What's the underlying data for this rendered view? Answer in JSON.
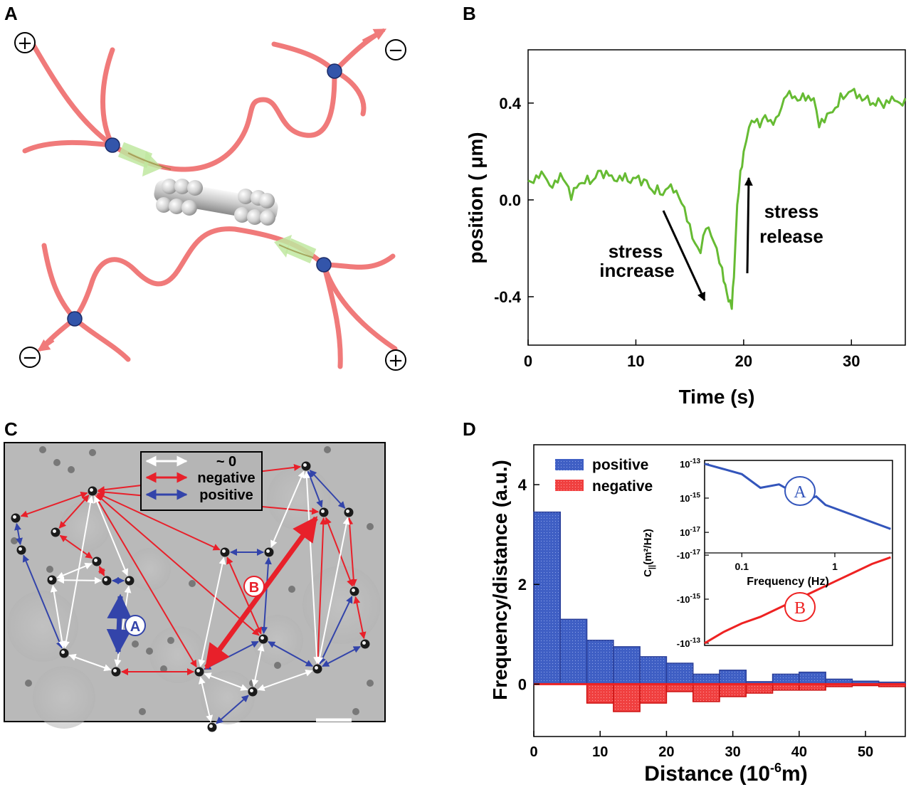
{
  "panels": {
    "A": {
      "letter": "A",
      "plus_sign": "+",
      "minus_sign": "−"
    },
    "B": {
      "letter": "B",
      "chart_data": {
        "type": "line",
        "xlabel": "Time (s)",
        "ylabel": "position ( μm)",
        "xlim": [
          0,
          35
        ],
        "ylim": [
          -0.6,
          0.62
        ],
        "x_ticks": [
          0,
          10,
          20,
          30
        ],
        "x_tick_labels": [
          "0",
          "10",
          "20",
          "30"
        ],
        "y_ticks": [
          -0.4,
          0.0,
          0.4
        ],
        "y_tick_labels": [
          "-0.4",
          "0.0",
          "0.4"
        ],
        "color": "#66bb33",
        "series": [
          {
            "x": [
              0,
              0.5,
              1,
              1.5,
              2,
              2.5,
              3,
              3.5,
              4,
              4.5,
              5,
              5.5,
              6,
              6.5,
              7,
              7.5,
              8,
              8.5,
              9,
              9.5,
              10,
              10.5,
              11,
              11.5,
              12,
              12.5,
              13,
              13.5,
              14,
              14.5,
              15,
              15.5,
              16,
              16.5,
              17,
              17.5,
              18,
              18.3,
              18.6,
              18.9,
              19.1,
              19.4,
              19.7,
              20,
              20.5,
              21,
              21.5,
              22,
              22.5,
              23,
              23.5,
              24,
              24.5,
              25,
              25.5,
              26,
              26.5,
              27,
              27.5,
              28,
              28.5,
              29,
              29.5,
              30,
              30.5,
              31,
              31.5,
              32,
              32.5,
              33,
              33.5,
              34,
              34.5,
              35
            ],
            "y": [
              0.08,
              0.07,
              0.09,
              0.1,
              0.06,
              0.08,
              0.11,
              0.07,
              0.0,
              0.05,
              0.07,
              0.1,
              0.08,
              0.12,
              0.09,
              0.1,
              0.08,
              0.1,
              0.11,
              0.07,
              0.09,
              0.06,
              0.08,
              0.04,
              0.06,
              0.02,
              0.05,
              0.03,
              0.01,
              -0.03,
              -0.1,
              -0.18,
              -0.22,
              -0.12,
              -0.15,
              -0.2,
              -0.28,
              -0.35,
              -0.42,
              -0.45,
              -0.32,
              -0.02,
              0.12,
              0.2,
              0.3,
              0.32,
              0.3,
              0.35,
              0.33,
              0.34,
              0.38,
              0.43,
              0.42,
              0.41,
              0.44,
              0.43,
              0.42,
              0.3,
              0.32,
              0.36,
              0.38,
              0.44,
              0.43,
              0.45,
              0.42,
              0.41,
              0.43,
              0.4,
              0.42,
              0.38,
              0.4,
              0.41,
              0.4,
              0.42
            ]
          }
        ],
        "annotations": [
          {
            "lines": [
              "stress",
              "increase"
            ]
          },
          {
            "lines": [
              "stress",
              "release"
            ]
          }
        ]
      }
    },
    "C": {
      "letter": "C",
      "legend": [
        {
          "label": "~ 0",
          "color": "#ffffff"
        },
        {
          "label": "negative",
          "color": "#e8202a"
        },
        {
          "label": "positive",
          "color": "#3344aa"
        }
      ],
      "markers": [
        {
          "text": "A",
          "color": "#3344aa"
        },
        {
          "text": "B",
          "color": "#e8202a"
        }
      ]
    },
    "D": {
      "letter": "D",
      "chart_data": {
        "type": "bar",
        "xlabel": "Distance (10",
        "xlabel_sup": "-6",
        "xlabel_tail": "m)",
        "ylabel": "Frequency/distance (a.u.)",
        "xlim": [
          0,
          56
        ],
        "ylim": [
          -1.05,
          4.8
        ],
        "x_ticks": [
          0,
          10,
          20,
          30,
          40,
          50
        ],
        "x_tick_labels": [
          "0",
          "10",
          "20",
          "30",
          "40",
          "50"
        ],
        "y_ticks": [
          0,
          2,
          4
        ],
        "y_tick_labels": [
          "0",
          "2",
          "4"
        ],
        "bin_width": 4,
        "bin_starts": [
          0,
          4,
          8,
          12,
          16,
          20,
          24,
          28,
          32,
          36,
          40,
          44,
          48,
          52
        ],
        "series": [
          {
            "name": "positive",
            "color": "#3355bb",
            "values": [
              3.45,
              1.3,
              0.88,
              0.75,
              0.55,
              0.42,
              0.2,
              0.28,
              0.05,
              0.2,
              0.24,
              0.1,
              0.06,
              0.04
            ]
          },
          {
            "name": "negative",
            "color": "#ee2222",
            "values": [
              0,
              0,
              -0.38,
              -0.55,
              -0.38,
              -0.15,
              -0.35,
              -0.25,
              -0.18,
              -0.12,
              -0.12,
              -0.05,
              -0.03,
              -0.05
            ]
          }
        ],
        "inset": {
          "ylabel": "C",
          "ylabel_sub": "||",
          "ylabel_tail": "(m²/Hz)",
          "xlabel": "Frequency (Hz)",
          "x_tick_labels": [
            "0.1",
            "1"
          ],
          "top_tick_labels": [
            "10-13",
            "10-15",
            "10-17"
          ],
          "bottom_tick_labels": [
            "-10-17",
            "-10-15",
            "-10-13"
          ],
          "marker_A": "A",
          "marker_B": "B",
          "positive_curve": {
            "log_f": [
              -1.4,
              -1.2,
              -1.0,
              -0.8,
              -0.6,
              -0.5,
              -0.4,
              -0.3,
              -0.2,
              -0.1,
              0,
              0.1,
              0.2,
              0.3,
              0.4,
              0.5,
              0.6
            ],
            "log_c": [
              -13.0,
              -13.3,
              -13.6,
              -14.4,
              -14.2,
              -14.5,
              -14.4,
              -15.1,
              -14.9,
              -15.4,
              -15.6,
              -15.8,
              -16.0,
              -16.2,
              -16.4,
              -16.6,
              -16.8
            ]
          },
          "negative_curve": {
            "log_f": [
              -1.4,
              -1.2,
              -1.0,
              -0.8,
              -0.6,
              -0.4,
              -0.2,
              0,
              0.2,
              0.4,
              0.6
            ],
            "val": [
              -13.0,
              -13.5,
              -13.9,
              -14.2,
              -14.6,
              -15.0,
              -15.4,
              -15.8,
              -16.2,
              -16.6,
              -16.9
            ]
          }
        }
      }
    }
  }
}
